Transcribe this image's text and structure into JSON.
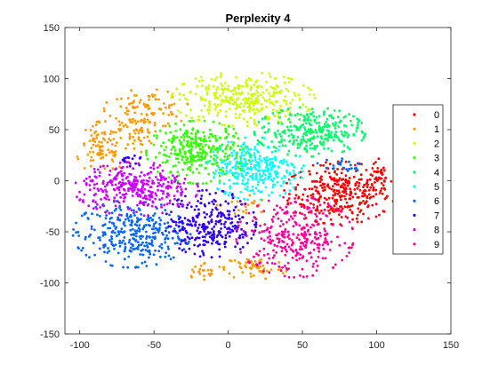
{
  "chart_data": {
    "type": "scatter",
    "title": "Perplexity 4",
    "xlabel": "",
    "ylabel": "",
    "xlim": [
      -110,
      150
    ],
    "ylim": [
      -150,
      150
    ],
    "xticks": [
      -100,
      -50,
      0,
      50,
      100,
      150
    ],
    "yticks": [
      -150,
      -100,
      -50,
      0,
      50,
      100,
      150
    ],
    "grid": false,
    "legend_position": "right",
    "series": [
      {
        "name": "0",
        "color": "#ff0000",
        "clusters": [
          {
            "cx": 75,
            "cy": -12,
            "sx": 17,
            "sy": 14,
            "n": 320
          },
          {
            "cx": 100,
            "cy": 2,
            "sx": 5,
            "sy": 10,
            "n": 40
          }
        ]
      },
      {
        "name": "1",
        "color": "#ff9900",
        "clusters": [
          {
            "cx": -85,
            "cy": 32,
            "sx": 8,
            "sy": 12,
            "n": 90
          },
          {
            "cx": -55,
            "cy": 70,
            "sx": 13,
            "sy": 9,
            "n": 100
          },
          {
            "cx": -62,
            "cy": 45,
            "sx": 6,
            "sy": 8,
            "n": 40
          },
          {
            "cx": 18,
            "cy": -85,
            "sx": 10,
            "sy": 6,
            "n": 60
          },
          {
            "cx": -15,
            "cy": -88,
            "sx": 8,
            "sy": 4,
            "n": 25
          },
          {
            "cx": 10,
            "cy": -25,
            "sx": 8,
            "sy": 6,
            "n": 25
          }
        ]
      },
      {
        "name": "2",
        "color": "#ccff00",
        "clusters": [
          {
            "cx": 10,
            "cy": 80,
            "sx": 22,
            "sy": 12,
            "n": 320
          }
        ]
      },
      {
        "name": "3",
        "color": "#33ff00",
        "clusters": [
          {
            "cx": -20,
            "cy": 28,
            "sx": 16,
            "sy": 14,
            "n": 330
          }
        ]
      },
      {
        "name": "4",
        "color": "#00ff66",
        "clusters": [
          {
            "cx": 55,
            "cy": 48,
            "sx": 17,
            "sy": 11,
            "n": 300
          }
        ]
      },
      {
        "name": "5",
        "color": "#00ffff",
        "clusters": [
          {
            "cx": 18,
            "cy": 12,
            "sx": 15,
            "sy": 14,
            "n": 300
          }
        ]
      },
      {
        "name": "6",
        "color": "#0066ff",
        "clusters": [
          {
            "cx": -65,
            "cy": -52,
            "sx": 18,
            "sy": 15,
            "n": 330
          },
          {
            "cx": 75,
            "cy": 15,
            "sx": 8,
            "sy": 3,
            "n": 25
          }
        ]
      },
      {
        "name": "7",
        "color": "#3300ff",
        "clusters": [
          {
            "cx": -12,
            "cy": -42,
            "sx": 14,
            "sy": 15,
            "n": 280
          },
          {
            "cx": -65,
            "cy": 20,
            "sx": 5,
            "sy": 3,
            "n": 15
          }
        ]
      },
      {
        "name": "8",
        "color": "#cc00ff",
        "clusters": [
          {
            "cx": -62,
            "cy": -8,
            "sx": 19,
            "sy": 12,
            "n": 330
          }
        ]
      },
      {
        "name": "9",
        "color": "#ff0099",
        "clusters": [
          {
            "cx": 45,
            "cy": -55,
            "sx": 18,
            "sy": 18,
            "n": 320
          }
        ]
      }
    ]
  }
}
